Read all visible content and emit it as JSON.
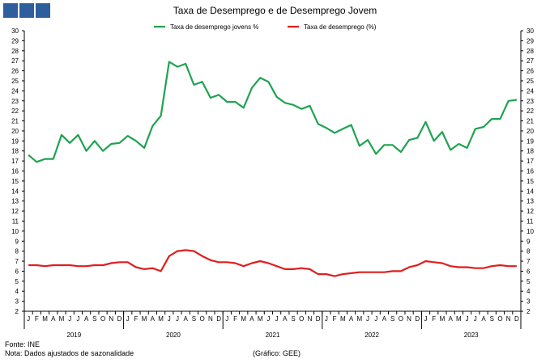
{
  "header": {
    "title": "Taxa de Desemprego e de Desemprego Jovem"
  },
  "footer": {
    "source": "Fonte: INE",
    "note": "Nota: Dados ajustados de sazonalidade",
    "credit": "(Gráfico: GEE)"
  },
  "colors": {
    "logo": "#2e5e9e",
    "youth": "#1fa352",
    "total": "#e01e1e"
  },
  "chart_data": {
    "type": "line",
    "title": "Taxa de Desemprego e de Desemprego Jovem",
    "ylim": [
      2,
      30
    ],
    "yticks": [
      2,
      3,
      4,
      5,
      6,
      7,
      8,
      9,
      10,
      11,
      12,
      13,
      14,
      15,
      16,
      17,
      18,
      19,
      20,
      21,
      22,
      23,
      24,
      25,
      26,
      27,
      28,
      29,
      30
    ],
    "grid": false,
    "legend": "top",
    "month_labels": [
      "J",
      "F",
      "M",
      "A",
      "M",
      "J",
      "J",
      "A",
      "S",
      "O",
      "N",
      "D"
    ],
    "years": [
      "2019",
      "2020",
      "2021",
      "2022",
      "2023"
    ],
    "series": [
      {
        "name": "Taxa de desemprego jovens %",
        "color": "#1fa352",
        "values": [
          17.6,
          16.9,
          17.2,
          17.2,
          19.6,
          18.8,
          19.6,
          18.0,
          19.0,
          18.0,
          18.7,
          18.8,
          19.5,
          19.0,
          18.3,
          20.5,
          21.5,
          26.9,
          26.4,
          26.7,
          24.6,
          24.9,
          23.3,
          23.6,
          22.9,
          22.9,
          22.3,
          24.3,
          25.3,
          24.9,
          23.4,
          22.8,
          22.6,
          22.2,
          22.5,
          20.7,
          20.3,
          19.8,
          20.2,
          20.6,
          18.5,
          19.1,
          17.7,
          18.6,
          18.6,
          17.9,
          19.1,
          19.3,
          20.9,
          19.0,
          19.9,
          18.1,
          18.7,
          18.3,
          20.2,
          20.4,
          21.2,
          21.2,
          23.0,
          23.1
        ]
      },
      {
        "name": "Taxa de desemprego (%)",
        "color": "#e01e1e",
        "values": [
          6.6,
          6.6,
          6.5,
          6.6,
          6.6,
          6.6,
          6.5,
          6.5,
          6.6,
          6.6,
          6.8,
          6.9,
          6.9,
          6.4,
          6.2,
          6.3,
          6.0,
          7.5,
          8.0,
          8.1,
          8.0,
          7.5,
          7.1,
          6.9,
          6.9,
          6.8,
          6.5,
          6.8,
          7.0,
          6.8,
          6.5,
          6.2,
          6.2,
          6.3,
          6.2,
          5.7,
          5.7,
          5.5,
          5.7,
          5.8,
          5.9,
          5.9,
          5.9,
          5.9,
          6.0,
          6.0,
          6.4,
          6.6,
          7.0,
          6.9,
          6.8,
          6.5,
          6.4,
          6.4,
          6.3,
          6.3,
          6.5,
          6.6,
          6.5,
          6.5
        ]
      }
    ]
  }
}
